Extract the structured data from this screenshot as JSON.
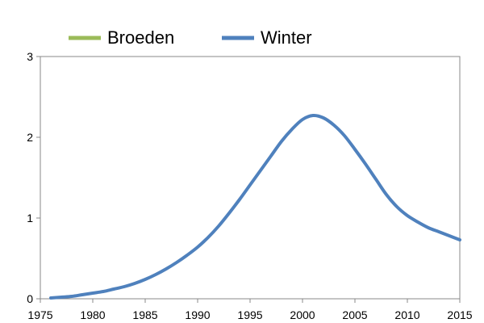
{
  "chart_data": {
    "type": "line",
    "title": "",
    "xlabel": "",
    "ylabel": "",
    "xlim": [
      1975,
      2015
    ],
    "ylim": [
      0,
      3
    ],
    "x_ticks": [
      "1975",
      "1980",
      "1985",
      "1990",
      "1995",
      "2000",
      "2005",
      "2010",
      "2015"
    ],
    "y_ticks": [
      "0",
      "1",
      "2",
      "3"
    ],
    "grid": false,
    "legend_position": "top",
    "legend": [
      "Broeden",
      "Winter"
    ],
    "series": [
      {
        "name": "Broeden",
        "color": "#9bbb59",
        "x": [],
        "y": []
      },
      {
        "name": "Winter",
        "color": "#4f81bd",
        "x": [
          1976,
          1977,
          1978,
          1979,
          1980,
          1981,
          1982,
          1983,
          1984,
          1985,
          1986,
          1987,
          1988,
          1989,
          1990,
          1991,
          1992,
          1993,
          1994,
          1995,
          1996,
          1997,
          1998,
          1999,
          2000,
          2001,
          2002,
          2003,
          2004,
          2005,
          2006,
          2007,
          2008,
          2009,
          2010,
          2011,
          2012,
          2013,
          2014,
          2015
        ],
        "y": [
          0.01,
          0.02,
          0.03,
          0.05,
          0.07,
          0.09,
          0.12,
          0.15,
          0.19,
          0.24,
          0.3,
          0.37,
          0.45,
          0.54,
          0.64,
          0.76,
          0.9,
          1.06,
          1.23,
          1.41,
          1.59,
          1.77,
          1.95,
          2.1,
          2.22,
          2.27,
          2.24,
          2.15,
          2.02,
          1.85,
          1.67,
          1.48,
          1.29,
          1.14,
          1.03,
          0.95,
          0.88,
          0.83,
          0.78,
          0.73
        ]
      }
    ]
  }
}
